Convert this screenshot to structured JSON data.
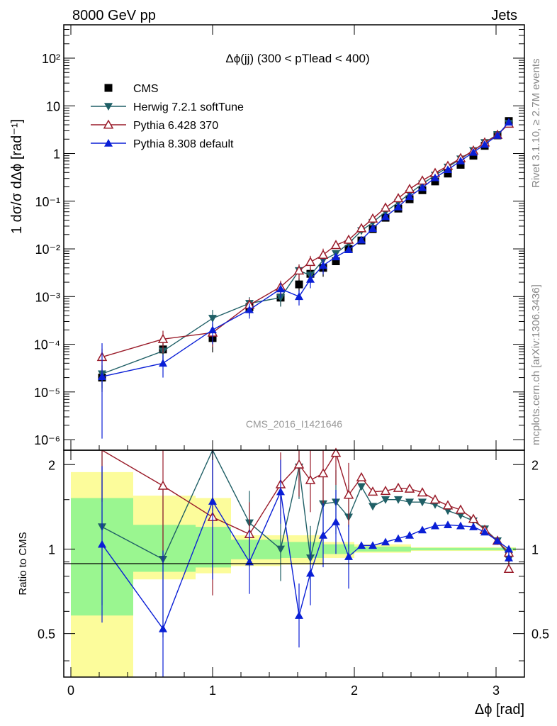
{
  "header": {
    "energy": "8000 GeV pp",
    "process": "Jets"
  },
  "side_labels": {
    "rivet": "Rivet 3.1.10, ≥ 2.7M events",
    "mcplots": "mcplots.cern.ch [arXiv:1306.3436]"
  },
  "watermark": "CMS_2016_I1421646",
  "chart_data": {
    "type": "line",
    "title": "Δϕ(jj) (300 < pTlead <  400)",
    "xlabel": "Δϕ [rad]",
    "ylabel": "1/σ dσ/dΔϕ [rad⁻¹]",
    "ratio_ylabel": "Ratio to CMS",
    "xlim": [
      -0.05,
      3.2
    ],
    "ylim": [
      6e-07,
      500
    ],
    "ratio_ylim": [
      0.35,
      2.25
    ],
    "y_scale": "log",
    "ratio_y_scale": "log",
    "x_ticks": [
      0,
      1,
      2,
      3
    ],
    "y_ticks": [
      "10⁻⁶",
      "10⁻⁵",
      "10⁻⁴",
      "10⁻³",
      "10⁻²",
      "10⁻¹",
      "1",
      "10",
      "10²"
    ],
    "ratio_ticks": [
      "0.5",
      "1",
      "2"
    ],
    "legend_position": "top-left",
    "data_x": [
      0.22,
      0.65,
      1.0,
      1.26,
      1.48,
      1.61,
      1.69,
      1.78,
      1.87,
      1.96,
      2.05,
      2.13,
      2.22,
      2.31,
      2.39,
      2.48,
      2.57,
      2.66,
      2.75,
      2.84,
      2.92,
      3.01,
      3.09
    ],
    "series": [
      {
        "name": "CMS",
        "color": "#000000",
        "marker": "square",
        "values": [
          2e-05,
          7.8e-05,
          0.000135,
          0.0006,
          0.00095,
          0.0018,
          0.003,
          0.004,
          0.0055,
          0.01,
          0.015,
          0.026,
          0.045,
          0.07,
          0.11,
          0.17,
          0.26,
          0.38,
          0.58,
          0.9,
          1.45,
          2.4,
          4.8
        ]
      },
      {
        "name": "Herwig 7.2.1 softTune",
        "color": "#1f5f66",
        "marker": "triangle-down",
        "values": [
          2.4e-05,
          7.2e-05,
          0.00035,
          0.00072,
          0.00095,
          0.0035,
          0.0028,
          0.0058,
          0.008,
          0.013,
          0.024,
          0.036,
          0.06,
          0.094,
          0.145,
          0.23,
          0.35,
          0.52,
          0.77,
          1.15,
          1.7,
          2.5,
          4.3
        ]
      },
      {
        "name": "Pythia 6.428 370",
        "color": "#9a1c2a",
        "marker": "triangle-up-open",
        "values": [
          5.4e-05,
          0.000128,
          0.000175,
          0.00067,
          0.0016,
          0.0035,
          0.0053,
          0.0075,
          0.012,
          0.0155,
          0.027,
          0.043,
          0.073,
          0.115,
          0.18,
          0.27,
          0.39,
          0.55,
          0.8,
          1.15,
          1.7,
          2.45,
          4.2
        ]
      },
      {
        "name": "Pythia 8.308 default",
        "color": "#0a1fd6",
        "marker": "triangle-up",
        "values": [
          2.1e-05,
          4e-05,
          0.0002,
          0.00053,
          0.00145,
          0.001,
          0.0023,
          0.0045,
          0.0068,
          0.0096,
          0.0153,
          0.0268,
          0.0475,
          0.076,
          0.125,
          0.193,
          0.31,
          0.46,
          0.7,
          1.06,
          1.55,
          2.4,
          4.55
        ]
      }
    ],
    "ratio": [
      {
        "name": "Herwig 7.2.1 softTune",
        "values": [
          1.2,
          0.92,
          2.6,
          1.24,
          1.0,
          1.96,
          0.93,
          1.45,
          1.47,
          1.3,
          1.67,
          1.42,
          1.5,
          1.5,
          1.47,
          1.47,
          1.44,
          1.37,
          1.32,
          1.26,
          1.18,
          1.07,
          0.95,
          0.92
        ]
      },
      {
        "name": "Pythia 6.428 370",
        "values": [
          2.8,
          1.68,
          1.3,
          1.13,
          1.7,
          2.0,
          1.76,
          1.86,
          2.2,
          1.56,
          1.8,
          1.6,
          1.61,
          1.65,
          1.64,
          1.59,
          1.5,
          1.43,
          1.38,
          1.28,
          1.17,
          1.07,
          0.97,
          0.85
        ]
      },
      {
        "name": "Pythia 8.308 default",
        "values": [
          1.04,
          0.52,
          1.48,
          0.9,
          1.6,
          0.58,
          0.82,
          1.12,
          1.25,
          0.94,
          1.03,
          1.03,
          1.06,
          1.09,
          1.12,
          1.17,
          1.21,
          1.22,
          1.21,
          1.2,
          1.15,
          1.07,
          1.0,
          0.93
        ]
      }
    ],
    "ratio_x": [
      0.22,
      0.65,
      1.0,
      1.26,
      1.48,
      1.61,
      1.69,
      1.78,
      1.87,
      1.96,
      2.05,
      2.13,
      2.22,
      2.31,
      2.39,
      2.48,
      2.57,
      2.66,
      2.75,
      2.84,
      2.92,
      3.01,
      3.09,
      3.09
    ]
  }
}
